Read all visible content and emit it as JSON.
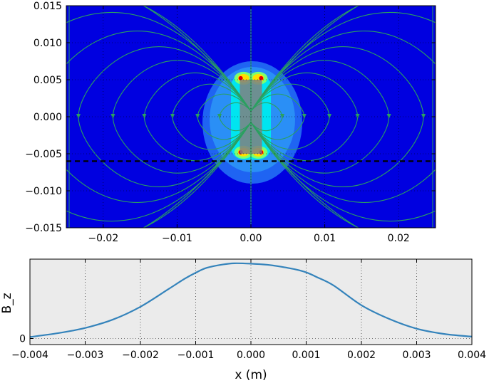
{
  "chart_data": [
    {
      "type": "heatmap",
      "title": "",
      "xlabel": "",
      "ylabel": "",
      "xlim": [
        -0.025,
        0.025
      ],
      "ylim": [
        -0.015,
        0.015
      ],
      "x_ticks": [
        -0.02,
        -0.01,
        0.0,
        0.01,
        0.02
      ],
      "x_tick_labels": [
        "−0.02",
        "−0.01",
        "0.00",
        "0.01",
        "0.02"
      ],
      "y_ticks": [
        0.015,
        0.01,
        0.005,
        0.0,
        -0.005,
        -0.01,
        -0.015
      ],
      "y_tick_labels": [
        "0.015",
        "0.010",
        "0.005",
        "0.000",
        "−0.005",
        "−0.010",
        "−0.015"
      ],
      "grid": true,
      "background_color": "#0000e0",
      "streamline_color": "#2aa060",
      "magnet": {
        "x": [
          -0.0015,
          0.0015
        ],
        "y": [
          -0.005,
          0.005
        ],
        "color": "#808080"
      },
      "cut_line": {
        "y": -0.006,
        "style": "dashed",
        "color": "#000000"
      },
      "hot_spots": [
        [
          -0.001,
          0.0052
        ],
        [
          0.001,
          0.0052
        ],
        [
          -0.001,
          -0.0048
        ],
        [
          0.001,
          -0.0048
        ]
      ]
    },
    {
      "type": "line",
      "title": "",
      "xlabel": "x (m)",
      "ylabel": "B_z",
      "xlim": [
        -0.004,
        0.004
      ],
      "x_ticks": [
        -0.004,
        -0.003,
        -0.002,
        -0.001,
        0.0,
        0.001,
        0.002,
        0.003,
        0.004
      ],
      "x_tick_labels": [
        "−0.004",
        "−0.003",
        "−0.002",
        "−0.001",
        "0.000",
        "0.001",
        "0.002",
        "0.003",
        "0.004"
      ],
      "y_ticks": [
        0
      ],
      "y_tick_labels": [
        "0"
      ],
      "ylim": [
        -0.08,
        1.05
      ],
      "grid": true,
      "background_color": "#ebebeb",
      "line_color": "#3483bb",
      "x": [
        -0.004,
        -0.0035,
        -0.003,
        -0.0025,
        -0.002,
        -0.0015,
        -0.0012,
        -0.001,
        -0.0008,
        -0.0005,
        -0.0003,
        0.0,
        0.0003,
        0.0005,
        0.0008,
        0.001,
        0.0012,
        0.0015,
        0.002,
        0.0025,
        0.003,
        0.0035,
        0.004
      ],
      "y": [
        0.02,
        0.07,
        0.14,
        0.25,
        0.42,
        0.65,
        0.79,
        0.87,
        0.935,
        0.98,
        0.995,
        0.99,
        0.975,
        0.955,
        0.915,
        0.875,
        0.81,
        0.7,
        0.44,
        0.26,
        0.13,
        0.06,
        0.025
      ]
    }
  ]
}
